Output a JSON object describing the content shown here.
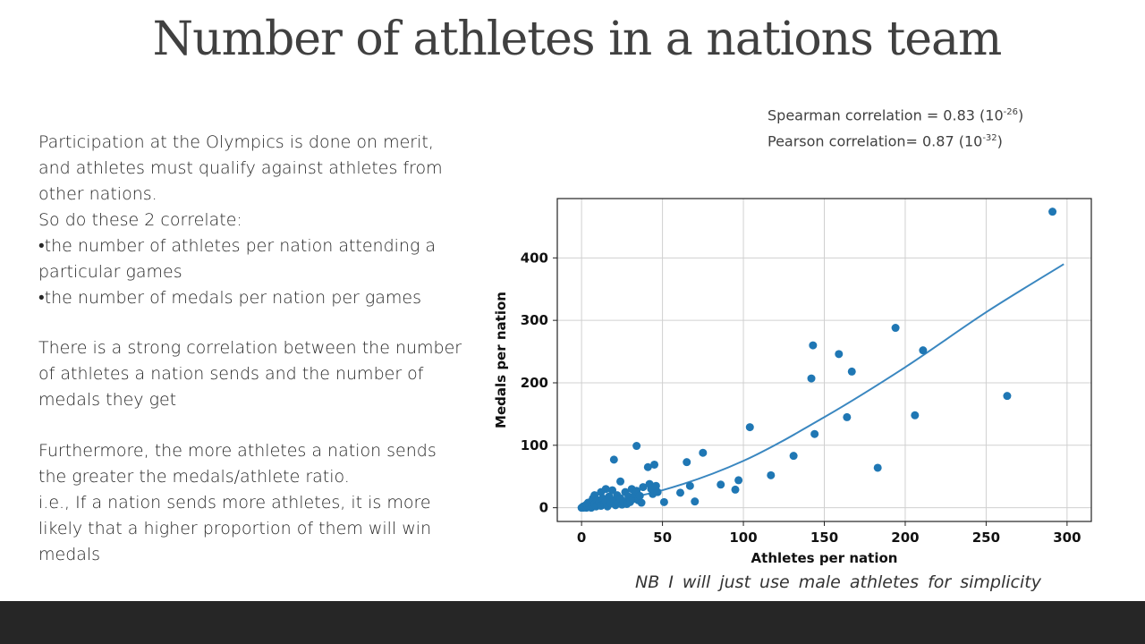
{
  "slide": {
    "title": "Number of athletes in a nations team",
    "paragraphs": [
      [
        "Participation at the Olympics is done on merit,",
        "and athletes must qualify against athletes from",
        "other nations.",
        "So do these 2 correlate:",
        "•the number of athletes per nation attending a",
        "particular games",
        "•the number of medals per nation per games"
      ],
      [
        "There is a strong correlation between the number",
        "of athletes a nation sends and the number of",
        "medals they get"
      ],
      [
        "Furthermore, the more athletes a nation sends",
        "the greater the medals/athlete ratio.",
        "i.e., If a nation sends more athletes, it is more",
        "likely that a higher proportion of them will win",
        "medals"
      ]
    ],
    "stats": {
      "spearman_prefix": "Spearman correlation = 0.83 (10",
      "spearman_exp": "-26",
      "pearson_prefix": "Pearson correlation= 0.87 (10",
      "pearson_exp": "-32",
      "close": ")"
    },
    "note": "NB I will just use male athletes for simplicity",
    "colors": {
      "points": "#1f77b4",
      "fit_line": "#3a87c0",
      "footer": "#262626",
      "grid": "#d0d0d0"
    }
  },
  "chart_data": {
    "type": "scatter",
    "xlabel": "Athletes per nation",
    "ylabel": "Medals per nation",
    "xlim": [
      -15,
      315
    ],
    "ylim": [
      -22,
      495
    ],
    "xticks": [
      0,
      50,
      100,
      150,
      200,
      250,
      300
    ],
    "yticks": [
      0,
      100,
      200,
      300,
      400
    ],
    "grid": true,
    "points": [
      [
        0,
        0
      ],
      [
        1,
        0
      ],
      [
        1,
        2
      ],
      [
        2,
        1
      ],
      [
        2,
        3
      ],
      [
        3,
        0
      ],
      [
        3,
        5
      ],
      [
        4,
        2
      ],
      [
        4,
        8
      ],
      [
        5,
        1
      ],
      [
        5,
        4
      ],
      [
        6,
        10
      ],
      [
        6,
        0
      ],
      [
        7,
        3
      ],
      [
        7,
        15
      ],
      [
        8,
        6
      ],
      [
        8,
        20
      ],
      [
        9,
        2
      ],
      [
        10,
        12
      ],
      [
        10,
        5
      ],
      [
        11,
        8
      ],
      [
        12,
        25
      ],
      [
        12,
        3
      ],
      [
        13,
        15
      ],
      [
        14,
        6
      ],
      [
        15,
        30
      ],
      [
        15,
        10
      ],
      [
        16,
        2
      ],
      [
        17,
        18
      ],
      [
        18,
        7
      ],
      [
        19,
        28
      ],
      [
        20,
        12
      ],
      [
        21,
        4
      ],
      [
        22,
        20
      ],
      [
        23,
        8
      ],
      [
        24,
        42
      ],
      [
        24,
        15
      ],
      [
        25,
        5
      ],
      [
        26,
        10
      ],
      [
        27,
        25
      ],
      [
        28,
        6
      ],
      [
        29,
        18
      ],
      [
        30,
        9
      ],
      [
        31,
        30
      ],
      [
        32,
        14
      ],
      [
        33,
        22
      ],
      [
        34,
        27
      ],
      [
        35,
        12
      ],
      [
        36,
        19
      ],
      [
        37,
        8
      ],
      [
        38,
        33
      ],
      [
        20,
        77
      ],
      [
        34,
        99
      ],
      [
        41,
        65
      ],
      [
        42,
        38
      ],
      [
        43,
        30
      ],
      [
        44,
        22
      ],
      [
        45,
        69
      ],
      [
        46,
        35
      ],
      [
        47,
        25
      ],
      [
        51,
        9
      ],
      [
        61,
        24
      ],
      [
        65,
        73
      ],
      [
        67,
        35
      ],
      [
        70,
        10
      ],
      [
        75,
        88
      ],
      [
        86,
        37
      ],
      [
        95,
        29
      ],
      [
        97,
        44
      ],
      [
        104,
        129
      ],
      [
        117,
        52
      ],
      [
        131,
        83
      ],
      [
        142,
        207
      ],
      [
        143,
        260
      ],
      [
        144,
        118
      ],
      [
        159,
        246
      ],
      [
        164,
        145
      ],
      [
        167,
        218
      ],
      [
        183,
        64
      ],
      [
        194,
        288
      ],
      [
        206,
        148
      ],
      [
        211,
        252
      ],
      [
        263,
        179
      ],
      [
        291,
        474
      ]
    ],
    "fit_curve": [
      [
        0,
        2
      ],
      [
        50,
        28
      ],
      [
        100,
        75
      ],
      [
        150,
        145
      ],
      [
        200,
        225
      ],
      [
        250,
        313
      ],
      [
        298,
        390
      ]
    ]
  }
}
